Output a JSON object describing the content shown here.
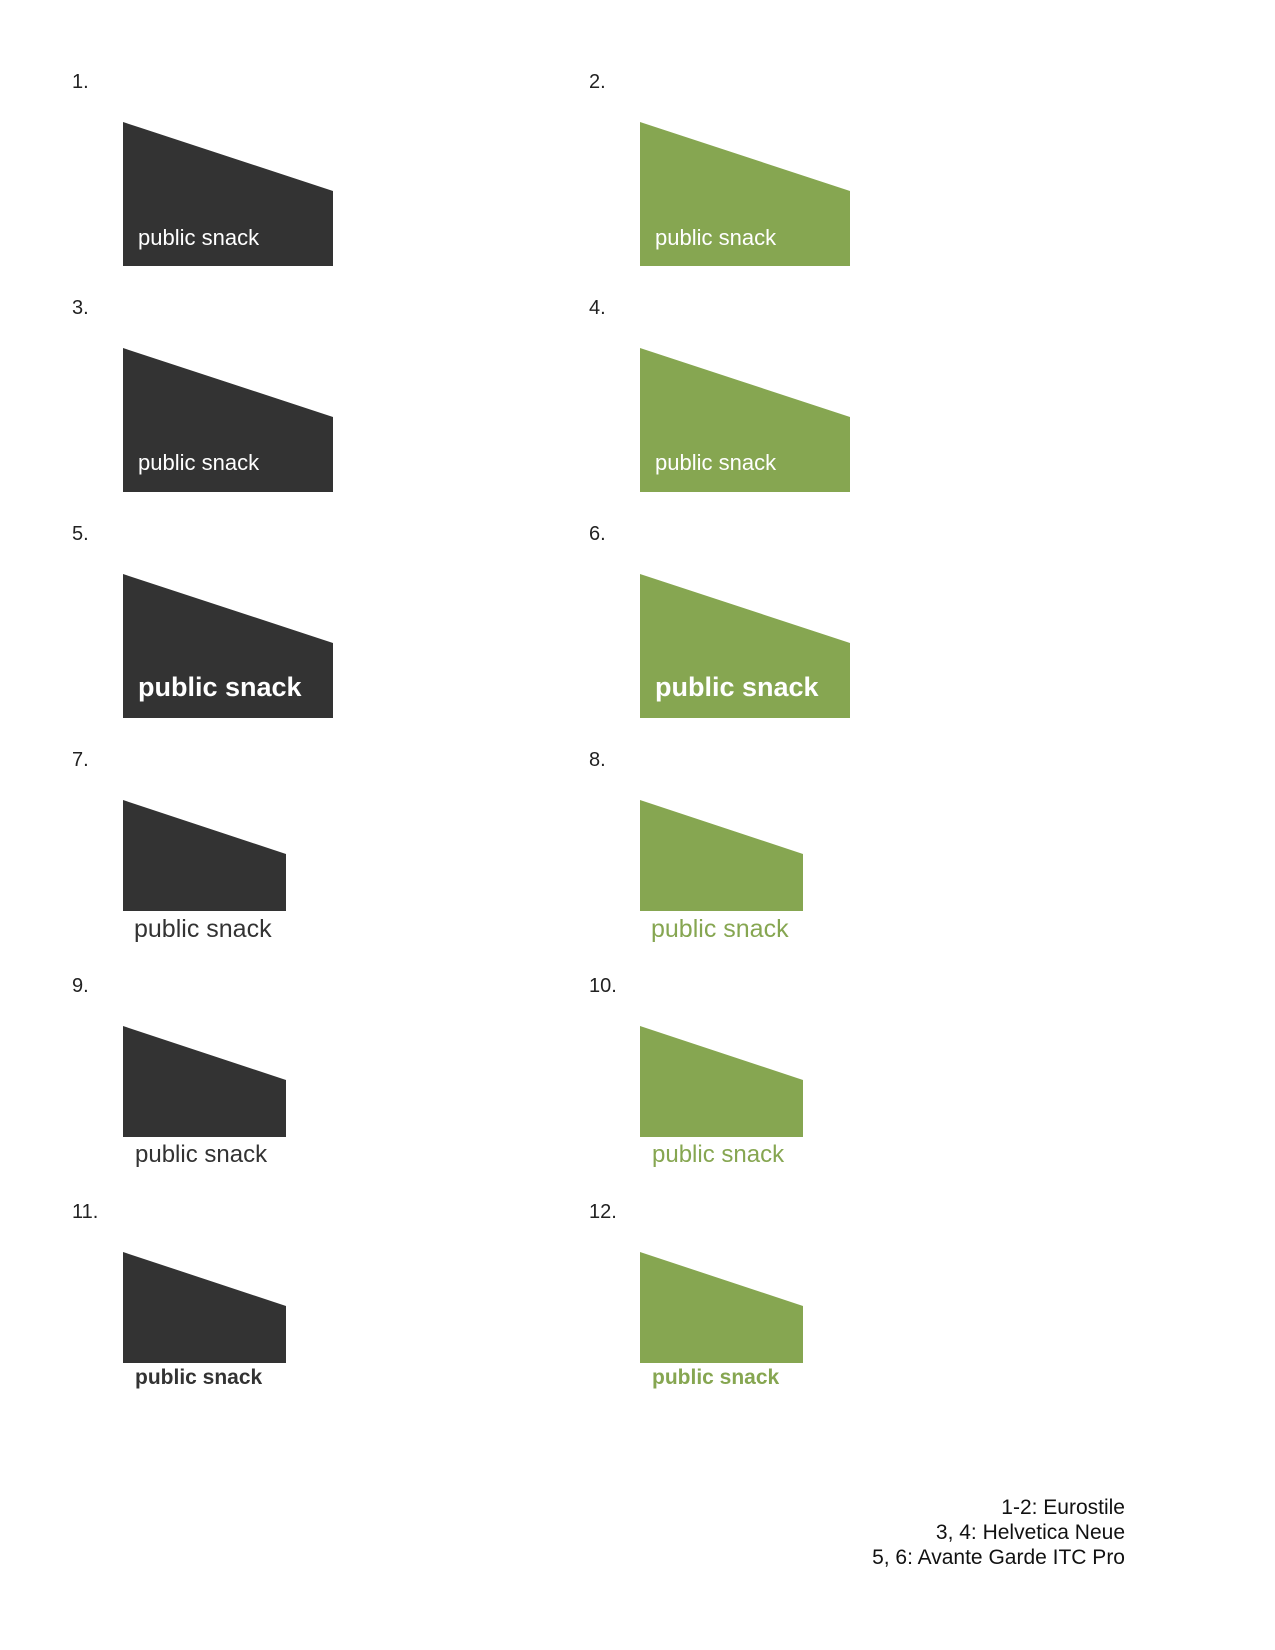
{
  "colors": {
    "dark": "#333333",
    "green": "#86A651",
    "label_on_shape": "#ffffff"
  },
  "variants": [
    {
      "number": "1.",
      "label": "public snack",
      "color": "dark",
      "label_position": "inside",
      "weight": "regular"
    },
    {
      "number": "2.",
      "label": "public snack",
      "color": "green",
      "label_position": "inside",
      "weight": "regular"
    },
    {
      "number": "3.",
      "label": "public snack",
      "color": "dark",
      "label_position": "inside",
      "weight": "regular"
    },
    {
      "number": "4.",
      "label": "public snack",
      "color": "green",
      "label_position": "inside",
      "weight": "regular"
    },
    {
      "number": "5.",
      "label": "public snack",
      "color": "dark",
      "label_position": "inside",
      "weight": "bold"
    },
    {
      "number": "6.",
      "label": "public snack",
      "color": "green",
      "label_position": "inside",
      "weight": "bold"
    },
    {
      "number": "7.",
      "label": "public snack",
      "color": "dark",
      "label_position": "below",
      "weight": "regular"
    },
    {
      "number": "8.",
      "label": "public snack",
      "color": "green",
      "label_position": "below",
      "weight": "regular"
    },
    {
      "number": "9.",
      "label": "public snack",
      "color": "dark",
      "label_position": "below",
      "weight": "regular"
    },
    {
      "number": "10.",
      "label": "public snack",
      "color": "green",
      "label_position": "below",
      "weight": "regular"
    },
    {
      "number": "11.",
      "label": "public snack",
      "color": "dark",
      "label_position": "below",
      "weight": "bold"
    },
    {
      "number": "12.",
      "label": "public snack",
      "color": "green",
      "label_position": "below",
      "weight": "bold"
    }
  ],
  "legend": {
    "line1": "1-2: Eurostile",
    "line2": "3, 4: Helvetica Neue",
    "line3": "5, 6: Avante Garde ITC Pro"
  }
}
